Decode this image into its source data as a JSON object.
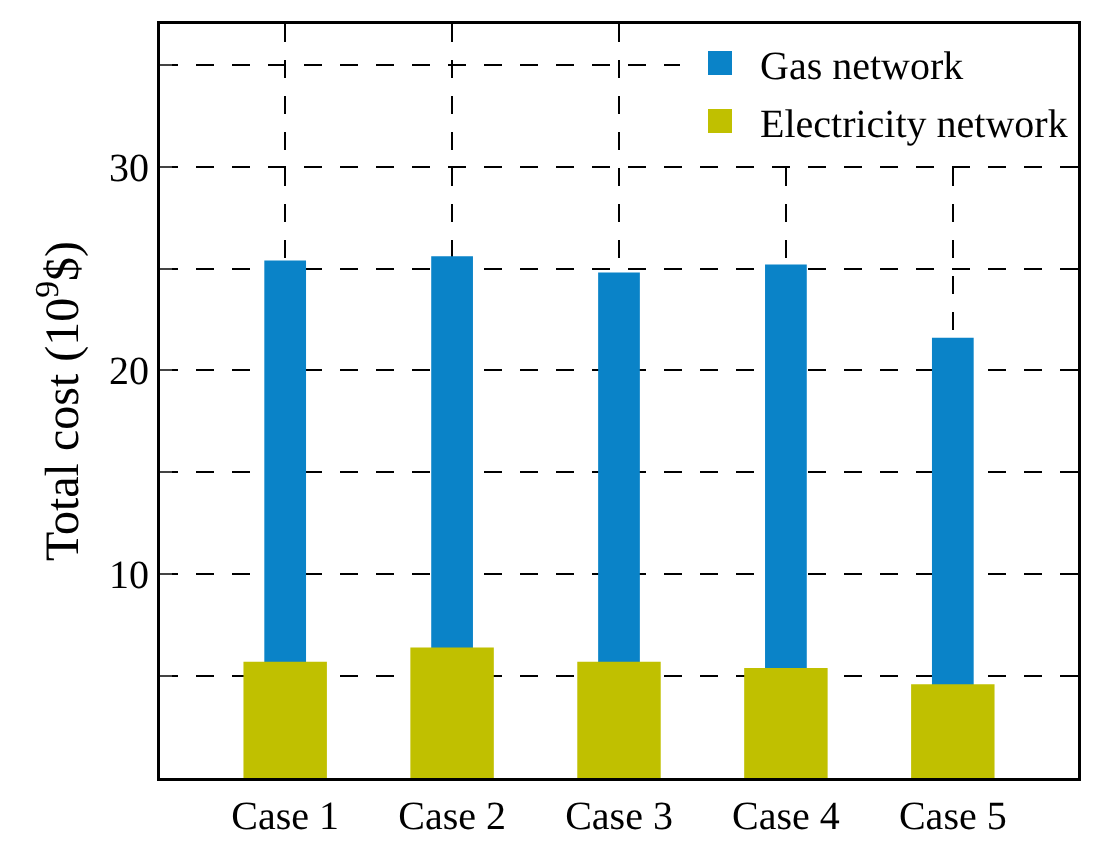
{
  "chart_data": {
    "type": "bar",
    "ylabel": "Total cost (10$^{9}$$)",
    "categories": [
      "Case 1",
      "Case 2",
      "Case 3",
      "Case 4",
      "Case 5"
    ],
    "series": [
      {
        "name": "Gas network",
        "color": "#0a83c8",
        "values": [
          25.4,
          25.6,
          24.8,
          25.2,
          21.6
        ]
      },
      {
        "name": "Electricity network",
        "color": "#c0c000",
        "values": [
          5.7,
          6.4,
          5.7,
          5.4,
          4.6
        ]
      }
    ],
    "ylim": [
      0,
      37
    ],
    "yticks": [
      {
        "value": 5,
        "label": null
      },
      10,
      {
        "value": 15,
        "label": null
      },
      20,
      {
        "value": 25,
        "label": null
      },
      30,
      {
        "value": 35,
        "label": null
      }
    ],
    "grid": true,
    "legend": "top right"
  }
}
